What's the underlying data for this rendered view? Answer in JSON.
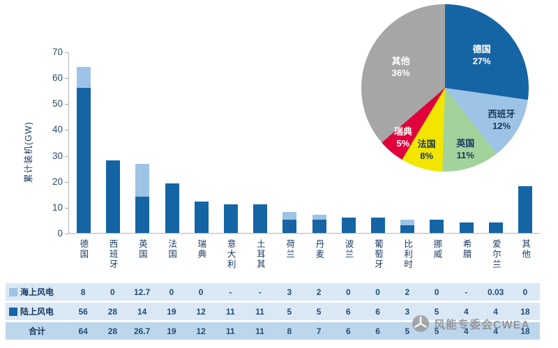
{
  "chart_data": [
    {
      "type": "bar",
      "stacked": true,
      "categories": [
        "德国",
        "西班牙",
        "英国",
        "法国",
        "瑞典",
        "意大利",
        "土耳其",
        "荷兰",
        "丹麦",
        "波兰",
        "葡萄牙",
        "比利时",
        "挪威",
        "希腊",
        "爱尔兰",
        "其他"
      ],
      "series": [
        {
          "name": "陆上风电",
          "color": "#1565a5",
          "values": [
            56,
            28,
            14,
            19,
            12,
            11,
            11,
            5,
            5,
            6,
            6,
            3,
            5,
            4,
            4,
            18
          ]
        },
        {
          "name": "海上风电",
          "color": "#9dc3e6",
          "values": [
            8,
            0,
            12.7,
            0,
            0,
            0,
            0,
            3,
            2,
            0,
            0,
            2,
            0,
            0,
            0.03,
            0
          ]
        }
      ],
      "ylabel": "累计装机(GW)",
      "ylim": [
        0,
        70
      ],
      "yticks": [
        0,
        10,
        20,
        30,
        40,
        50,
        60,
        70
      ],
      "grid": false,
      "legend_position": "table-left"
    },
    {
      "type": "pie",
      "slices": [
        {
          "label": "德国",
          "pct": 27,
          "color": "#1565a5",
          "text_color": "#ffffff"
        },
        {
          "label": "西班牙",
          "pct": 12,
          "color": "#9dc3e6",
          "text_color": "#17375e"
        },
        {
          "label": "英国",
          "pct": 11,
          "color": "#a2d39c",
          "text_color": "#17375e"
        },
        {
          "label": "法国",
          "pct": 8,
          "color": "#f2e500",
          "text_color": "#17375e"
        },
        {
          "label": "瑞典",
          "pct": 5,
          "color": "#e0003c",
          "text_color": "#ffffff"
        },
        {
          "label": "其他",
          "pct": 36,
          "color": "#a6a6a6",
          "text_color": "#ffffff"
        }
      ]
    }
  ],
  "table": {
    "rows": [
      {
        "label": "海上风电",
        "legend_color": "#9dc3e6",
        "bg": "#dae8f5",
        "values": [
          "8",
          "0",
          "12.7",
          "0",
          "0",
          "-",
          "-",
          "3",
          "2",
          "0",
          "0",
          "2",
          "0",
          "-",
          "0.03",
          "0"
        ]
      },
      {
        "label": "陆上风电",
        "legend_color": "#1565a5",
        "bg": "#dae8f5",
        "values": [
          "56",
          "28",
          "14",
          "19",
          "12",
          "11",
          "11",
          "5",
          "5",
          "6",
          "6",
          "3",
          "5",
          "4",
          "4",
          "18"
        ]
      },
      {
        "label": "合计",
        "legend_color": null,
        "bg": "#bcd6ec",
        "values": [
          "64",
          "28",
          "26.7",
          "19",
          "12",
          "11",
          "11",
          "8",
          "7",
          "6",
          "6",
          "5",
          "5",
          "4",
          "4",
          "18"
        ]
      }
    ]
  },
  "watermark": {
    "text": "风能专委会CWEA"
  }
}
